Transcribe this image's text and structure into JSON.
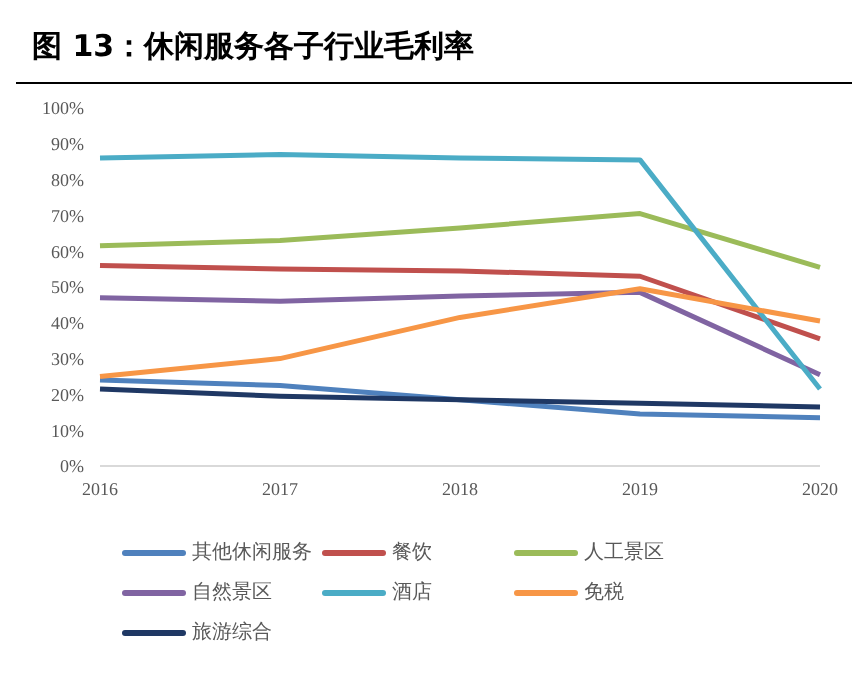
{
  "chart_data": {
    "type": "line",
    "title": "图 13：休闲服务各子行业毛利率",
    "categories": [
      "2016",
      "2017",
      "2018",
      "2019",
      "2020"
    ],
    "series": [
      {
        "name": "其他休闲服务",
        "color": "#4f81bd",
        "values": [
          24,
          22.5,
          18.5,
          14.5,
          13.5
        ]
      },
      {
        "name": "餐饮",
        "color": "#c0504d",
        "values": [
          56,
          55,
          54.5,
          53,
          35.5
        ]
      },
      {
        "name": "人工景区",
        "color": "#9bbb59",
        "values": [
          61.5,
          63,
          66.5,
          70.5,
          55.5
        ]
      },
      {
        "name": "自然景区",
        "color": "#8064a2",
        "values": [
          47,
          46,
          47.5,
          48.5,
          25.5
        ]
      },
      {
        "name": "酒店",
        "color": "#4bacc6",
        "values": [
          86,
          87,
          86,
          85.5,
          21.5
        ]
      },
      {
        "name": "免税",
        "color": "#f79646",
        "values": [
          25,
          30,
          41.5,
          49.5,
          40.5
        ]
      },
      {
        "name": "旅游综合",
        "color": "#1f3864",
        "values": [
          21.5,
          19.5,
          18.5,
          17.5,
          16.5
        ]
      }
    ],
    "ylim": [
      0,
      100
    ],
    "yticks": [
      {
        "value": 0,
        "label": "0%"
      },
      {
        "value": 10,
        "label": "10%"
      },
      {
        "value": 20,
        "label": "20%"
      },
      {
        "value": 30,
        "label": "30%"
      },
      {
        "value": 40,
        "label": "40%"
      },
      {
        "value": 50,
        "label": "50%"
      },
      {
        "value": 60,
        "label": "60%"
      },
      {
        "value": 70,
        "label": "70%"
      },
      {
        "value": 80,
        "label": "80%"
      },
      {
        "value": 90,
        "label": "90%"
      },
      {
        "value": 100,
        "label": "100%"
      }
    ],
    "grid": false,
    "legend": "bottom",
    "marker": "none",
    "line_style": "solid"
  }
}
